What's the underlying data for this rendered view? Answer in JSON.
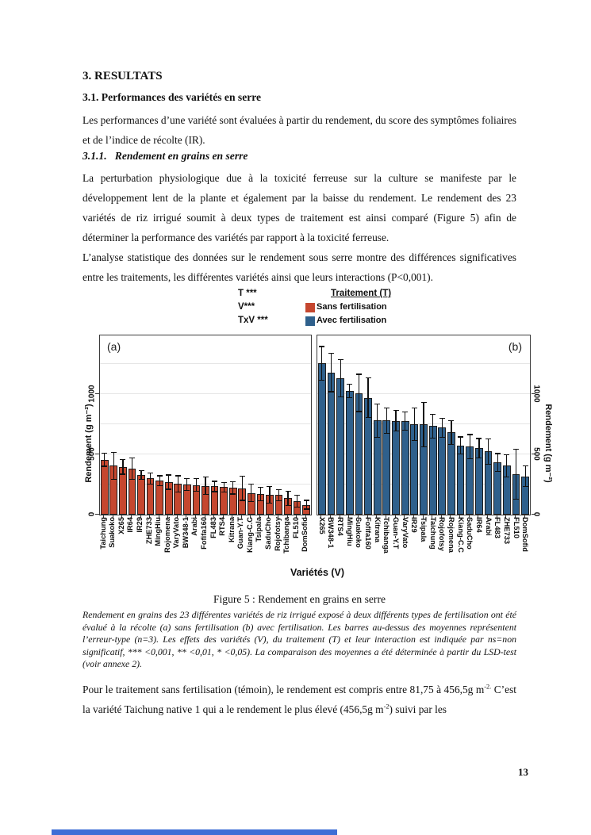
{
  "page": {
    "number": "13"
  },
  "headings": {
    "h1": "3. RESULTATS",
    "h2": "3.1. Performances des variétés en serre",
    "h3": "3.1.1.   Rendement en grains en serre"
  },
  "paragraphs": {
    "p1": "Les performances d’une variété sont évaluées à partir du rendement, du score des symptômes foliaires et de l’indice de récolte (IR).",
    "p2": "La perturbation physiologique due à la toxicité ferreuse sur la culture se manifeste par le développement lent de la plante et également par la baisse du rendement. Le rendement des 23 variétés de riz irrigué soumit à deux types de traitement est ainsi comparé (Figure 5) afin de déterminer la performance des variétés par rapport à la toxicité ferreuse.",
    "p3": "L’analyse statistique des données sur le rendement sous serre montre des différences significatives entre les traitements, les différentes variétés ainsi que leurs interactions (P<0,001).",
    "p4_part1": "Pour le traitement sans fertilisation (témoin), le rendement est compris entre 81,75 à 456,5g m",
    "p4_sup1": "-2.",
    "p4_part2": " C’est la variété Taichung native 1 qui a le rendement le plus élevé (456,5g m",
    "p4_sup2": "-2",
    "p4_part3": ") suivi par les"
  },
  "figure": {
    "stats": [
      "T ***",
      "V***",
      "TxV ***"
    ],
    "legend": {
      "title": "Traitement (T)",
      "items": [
        {
          "label": "Sans fertilisation",
          "color": "#c5472f"
        },
        {
          "label": "Avec fertilisation",
          "color": "#2f608c"
        }
      ]
    },
    "caption": "Figure 5 : Rendement en grains en serre",
    "note": "Rendement en grains des 23 différentes variétés de riz irrigué exposé à deux différents types de fertilisation ont été évalué à la récolte (a) sans fertilisation (b) avec fertilisation.  Les barres au-dessus des moyennes représentent l’erreur-type (n=3). Les effets des variétés (V), du traitement (T) et leur interaction est indiquée par ns=non significatif, *** <0,001, ** <0,01, * <0,05). La comparaison des moyennes a été déterminée à partir du LSD-test (voir annexe 2)."
  },
  "chart_data": {
    "type": "bar",
    "title": "Rendement en grains en serre",
    "xlabel": "Variétés (V)",
    "ylabel": "Rendement (g m⁻²)",
    "ylim": [
      0,
      1487
    ],
    "yticks": [
      0,
      500,
      1000
    ],
    "gridlines": [
      250,
      500,
      750,
      1000,
      1250
    ],
    "grid": "horizontal, light gray",
    "legend_position": "top",
    "error_bars": "plus-minus standard error, n=3",
    "panels": [
      {
        "label": "(a)",
        "series": "Sans fertilisation",
        "color": "#c5472f",
        "categories": [
          "Taichung",
          "Suakoko",
          "X265",
          "IR64",
          "IR29",
          "ZHE733",
          "MingHiu",
          "Rojomena",
          "VaryVato",
          "BW348-1",
          "Arabi",
          "Fofifa160",
          "FL483",
          "RTS4",
          "Kitrana",
          "Guan-Y.T",
          "Kiang-C.C",
          "Tsipala",
          "SaduCho",
          "Rojofotsy",
          "Tchibanga",
          "FL510",
          "DomSofid"
        ],
        "values": [
          456,
          405,
          398,
          382,
          330,
          300,
          282,
          270,
          255,
          252,
          245,
          240,
          234,
          229,
          223,
          218,
          180,
          172,
          166,
          162,
          135,
          114,
          82
        ],
        "errors": [
          55,
          110,
          62,
          90,
          35,
          46,
          41,
          59,
          68,
          49,
          52,
          74,
          43,
          40,
          52,
          100,
          71,
          57,
          70,
          48,
          59,
          50,
          36
        ]
      },
      {
        "label": "(b)",
        "series": "Avec fertilisation",
        "color": "#2f608c",
        "categories": [
          "X265",
          "BW348-1",
          "RTS4",
          "MingHiu",
          "Suakoko",
          "Fofifa160",
          "Kitrana",
          "Tchibanga",
          "Guan-Y.T",
          "VaryVato",
          "IR29",
          "Tsipala",
          "Taichung",
          "Rojofotsy",
          "Rojomena",
          "Kiang-C.C",
          "SaduCho",
          "IR64",
          "Arabi",
          "FL483",
          "ZHE733",
          "FL510",
          "DomSofid"
        ],
        "values": [
          1255,
          1180,
          1130,
          1025,
          1010,
          970,
          780,
          780,
          778,
          775,
          750,
          748,
          735,
          722,
          682,
          575,
          565,
          552,
          525,
          432,
          405,
          336,
          318
        ],
        "errors": [
          140,
          160,
          155,
          55,
          155,
          165,
          140,
          105,
          85,
          75,
          135,
          185,
          100,
          80,
          100,
          70,
          100,
          80,
          105,
          75,
          90,
          205,
          85
        ]
      }
    ]
  },
  "bottom_bar": {
    "color": "#3e6ed6"
  }
}
